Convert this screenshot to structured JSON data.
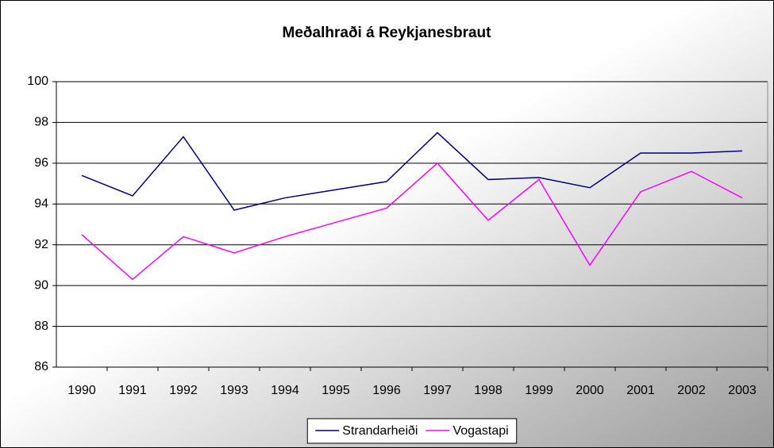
{
  "chart_data": {
    "type": "line",
    "title": "Meðalhraði á Reykjanesbraut",
    "categories": [
      "1990",
      "1991",
      "1992",
      "1993",
      "1994",
      "1995",
      "1996",
      "1997",
      "1998",
      "1999",
      "2000",
      "2001",
      "2002",
      "2003"
    ],
    "series": [
      {
        "name": "Strandarheiði",
        "color": "#000080",
        "values": [
          95.4,
          94.4,
          97.3,
          93.7,
          94.3,
          94.7,
          95.1,
          97.5,
          95.2,
          95.3,
          94.8,
          96.5,
          96.5,
          96.6
        ]
      },
      {
        "name": "Vogastapi",
        "color": "#ff00ff",
        "values": [
          92.5,
          90.3,
          92.4,
          91.6,
          92.4,
          93.1,
          93.8,
          96.0,
          93.2,
          95.2,
          91.0,
          94.6,
          95.6,
          94.3
        ]
      }
    ],
    "ylim": [
      86,
      100
    ],
    "yticks": [
      86,
      88,
      90,
      92,
      94,
      96,
      98,
      100
    ],
    "grid": true,
    "legend": "bottom"
  }
}
